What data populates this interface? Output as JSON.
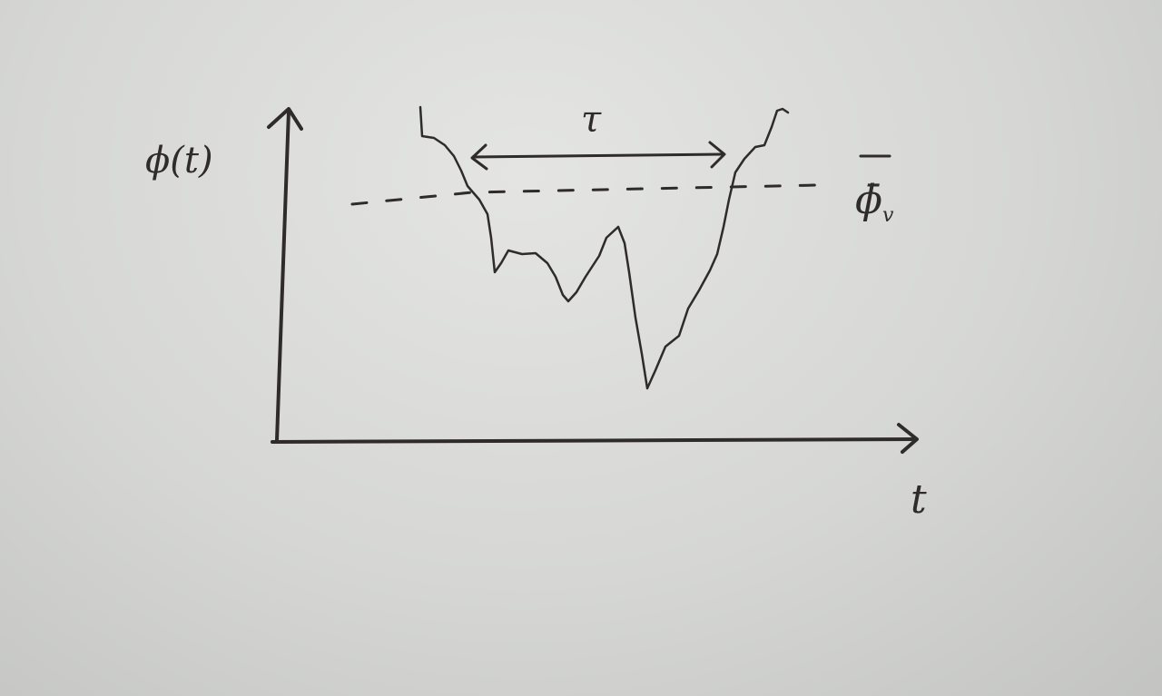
{
  "y_axis_label": "ϕ(t)",
  "x_axis_label": "t",
  "interval_label": "τ",
  "threshold_label": {
    "symbol": "ϕ̄",
    "subscript": "v"
  }
}
